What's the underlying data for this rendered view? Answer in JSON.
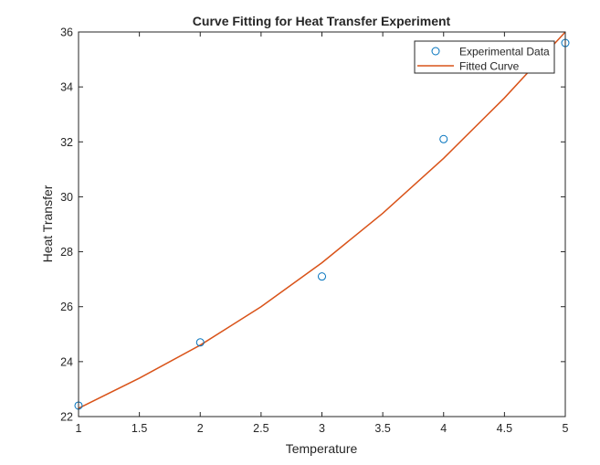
{
  "chart_data": {
    "type": "line",
    "title": "Curve Fitting for Heat Transfer Experiment",
    "xlabel": "Temperature",
    "ylabel": "Heat Transfer",
    "xlim": [
      1,
      5
    ],
    "ylim": [
      22,
      36
    ],
    "xticks": [
      "1",
      "1.5",
      "2",
      "2.5",
      "3",
      "3.5",
      "4",
      "4.5",
      "5"
    ],
    "yticks": [
      "22",
      "24",
      "26",
      "28",
      "30",
      "32",
      "34",
      "36"
    ],
    "grid": false,
    "legend_position": "top-right",
    "series": [
      {
        "name": "Experimental Data",
        "kind": "scatter",
        "marker": "circle",
        "color": "#0072BD",
        "x": [
          1,
          2,
          3,
          4,
          5
        ],
        "y": [
          22.4,
          24.7,
          27.1,
          32.1,
          35.6
        ]
      },
      {
        "name": "Fitted Curve",
        "kind": "line",
        "color": "#D95319",
        "x": [
          1,
          1.5,
          2,
          2.5,
          3,
          3.5,
          4,
          4.5,
          5
        ],
        "y": [
          22.3,
          23.4,
          24.6,
          26.0,
          27.6,
          29.4,
          31.4,
          33.6,
          36.0
        ]
      }
    ]
  }
}
